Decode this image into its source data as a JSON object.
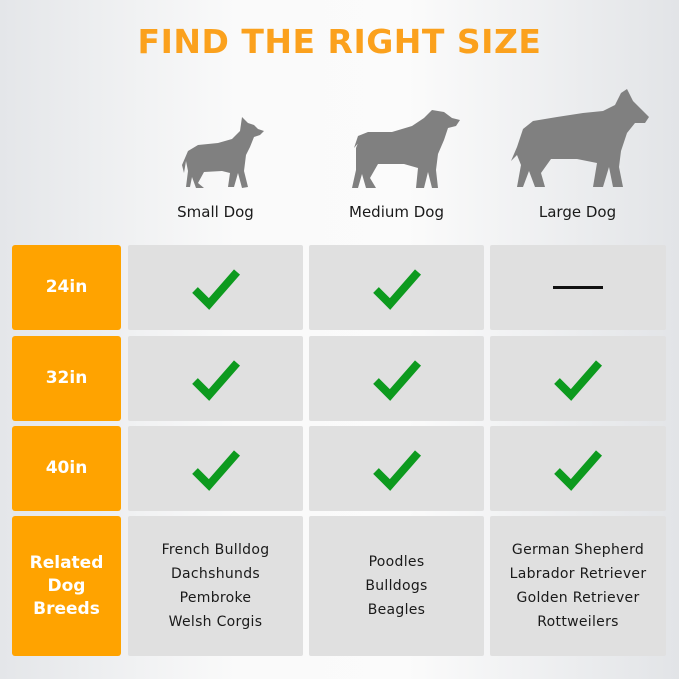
{
  "title": "FIND THE RIGHT SIZE",
  "columns": [
    "Small Dog",
    "Medium Dog",
    "Large Dog"
  ],
  "rows": [
    {
      "label": "24in",
      "values": [
        "check",
        "check",
        "dash"
      ]
    },
    {
      "label": "32in",
      "values": [
        "check",
        "check",
        "check"
      ]
    },
    {
      "label": "40in",
      "values": [
        "check",
        "check",
        "check"
      ]
    }
  ],
  "breeds": {
    "label": "Related Dog Breeds",
    "small": [
      "French Bulldog",
      "Dachshunds",
      "Pembroke",
      "Welsh Corgis"
    ],
    "medium": [
      "Poodles",
      "Bulldogs",
      "Beagles"
    ],
    "large": [
      "German Shepherd",
      "Labrador Retriever",
      "Golden Retriever",
      "Rottweilers"
    ]
  },
  "colors": {
    "accent": "#ffa300",
    "title": "#fba11d",
    "check": "#0d9a1e",
    "silhouette": "#808080"
  }
}
